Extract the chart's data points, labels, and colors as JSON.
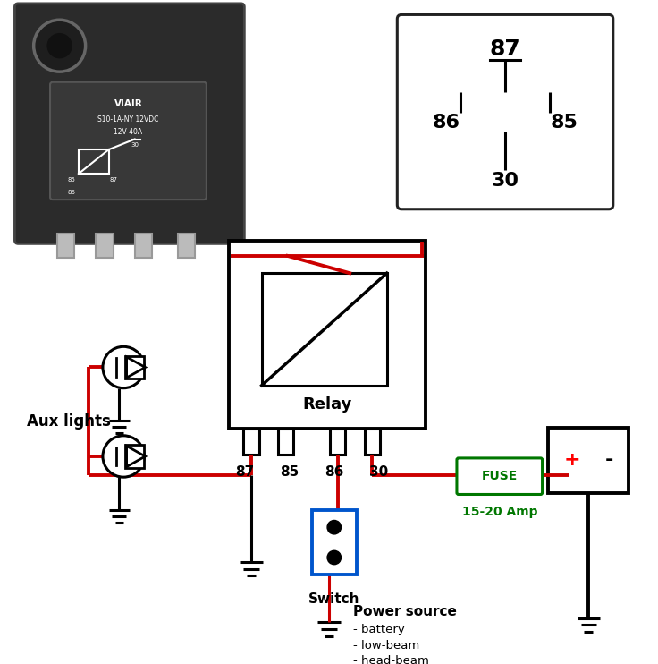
{
  "bg_color": "#ffffff",
  "wire_red": "#cc0000",
  "wire_black": "#000000",
  "wire_blue": "#0055cc",
  "fuse_color": "#007700",
  "amp_color": "#007700",
  "fuse_label": "FUSE",
  "amp_label": "15-20 Amp",
  "relay_label": "Relay",
  "aux_label": "Aux lights",
  "switch_label": "Switch",
  "power_label": "Power source",
  "power_items": [
    "- battery",
    "- low-beam",
    "- head-beam"
  ],
  "pin_labels": [
    "87",
    "85",
    "86",
    "30"
  ]
}
